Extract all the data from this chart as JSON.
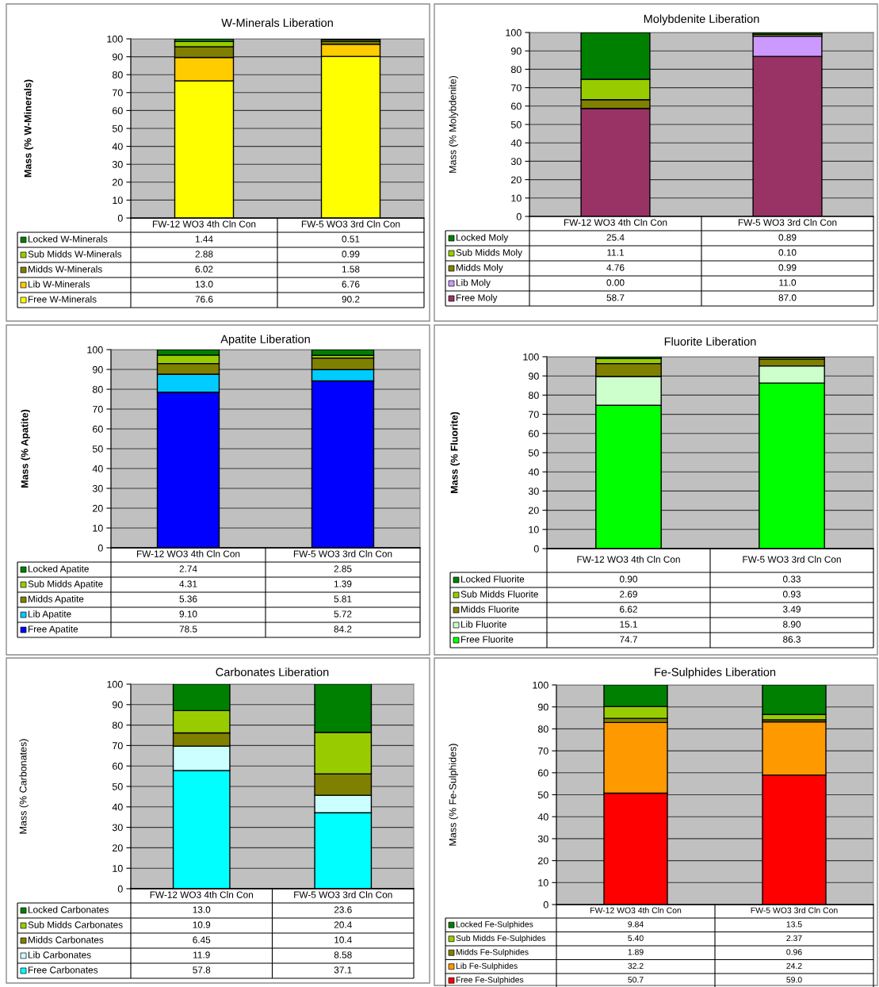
{
  "chart_data": [
    {
      "type": "bar",
      "stacked": true,
      "title": "W-Minerals Liberation",
      "ylabel": "Mass (% W-Minerals)",
      "categories": [
        "FW-12 WO3 4th Cln Con",
        "FW-5 WO3 3rd Cln Con"
      ],
      "ylim": [
        0,
        100
      ],
      "yticks": [
        0,
        10,
        20,
        30,
        40,
        50,
        60,
        70,
        80,
        90,
        100
      ],
      "grid": "y",
      "legend": "bottom",
      "series": [
        {
          "name": "Free W-Minerals",
          "color": "#ffff00",
          "values": [
            76.6,
            90.2
          ],
          "value_labels": [
            "76.6",
            "90.2"
          ]
        },
        {
          "name": "Lib W-Minerals",
          "color": "#ffcc00",
          "values": [
            13.0,
            6.76
          ],
          "value_labels": [
            "13.0",
            "6.76"
          ]
        },
        {
          "name": "Midds W-Minerals",
          "color": "#808000",
          "values": [
            6.02,
            1.58
          ],
          "value_labels": [
            "6.02",
            "1.58"
          ]
        },
        {
          "name": "Sub Midds W-Minerals",
          "color": "#99cc00",
          "values": [
            2.88,
            0.99
          ],
          "value_labels": [
            "2.88",
            "0.99"
          ]
        },
        {
          "name": "Locked W-Minerals",
          "color": "#008000",
          "values": [
            1.44,
            0.51
          ],
          "value_labels": [
            "1.44",
            "0.51"
          ]
        }
      ]
    },
    {
      "type": "bar",
      "stacked": true,
      "title": "Molybdenite Liberation",
      "ylabel": "Mass (% Molybdenite)",
      "categories": [
        "FW-12 WO3 4th Cln Con",
        "FW-5 WO3 3rd Cln Con"
      ],
      "ylim": [
        0,
        100
      ],
      "yticks": [
        0,
        10,
        20,
        30,
        40,
        50,
        60,
        70,
        80,
        90,
        100
      ],
      "grid": "y",
      "legend": "bottom",
      "series": [
        {
          "name": "Free Moly",
          "color": "#993366",
          "values": [
            58.7,
            87.0
          ],
          "value_labels": [
            "58.7",
            "87.0"
          ]
        },
        {
          "name": "Lib Moly",
          "color": "#cc99ff",
          "values": [
            0.0,
            11.0
          ],
          "value_labels": [
            "0.00",
            "11.0"
          ]
        },
        {
          "name": "Midds Moly",
          "color": "#808000",
          "values": [
            4.76,
            0.99
          ],
          "value_labels": [
            "4.76",
            "0.99"
          ]
        },
        {
          "name": "Sub Midds Moly",
          "color": "#99cc00",
          "values": [
            11.1,
            0.1
          ],
          "value_labels": [
            "11.1",
            "0.10"
          ]
        },
        {
          "name": "Locked Moly",
          "color": "#008000",
          "values": [
            25.4,
            0.89
          ],
          "value_labels": [
            "25.4",
            "0.89"
          ]
        }
      ]
    },
    {
      "type": "bar",
      "stacked": true,
      "title": "Apatite Liberation",
      "ylabel": "Mass (% Apatite)",
      "categories": [
        "FW-12 WO3 4th Cln Con",
        "FW-5 WO3 3rd Cln Con"
      ],
      "ylim": [
        0,
        100
      ],
      "yticks": [
        0,
        10,
        20,
        30,
        40,
        50,
        60,
        70,
        80,
        90,
        100
      ],
      "grid": "y",
      "legend": "bottom",
      "series": [
        {
          "name": "Free Apatite",
          "color": "#0000ff",
          "values": [
            78.5,
            84.2
          ],
          "value_labels": [
            "78.5",
            "84.2"
          ]
        },
        {
          "name": "Lib Apatite",
          "color": "#00ccff",
          "values": [
            9.1,
            5.72
          ],
          "value_labels": [
            "9.10",
            "5.72"
          ]
        },
        {
          "name": "Midds Apatite",
          "color": "#808000",
          "values": [
            5.36,
            5.81
          ],
          "value_labels": [
            "5.36",
            "5.81"
          ]
        },
        {
          "name": "Sub Midds Apatite",
          "color": "#99cc00",
          "values": [
            4.31,
            1.39
          ],
          "value_labels": [
            "4.31",
            "1.39"
          ]
        },
        {
          "name": "Locked Apatite",
          "color": "#008000",
          "values": [
            2.74,
            2.85
          ],
          "value_labels": [
            "2.74",
            "2.85"
          ]
        }
      ]
    },
    {
      "type": "bar",
      "stacked": true,
      "title": "Fluorite Liberation",
      "ylabel": "Mass (% Fluorite)",
      "categories": [
        "FW-12 WO3 4th Cln Con",
        "FW-5 WO3 3rd Cln Con"
      ],
      "ylim": [
        0,
        100
      ],
      "yticks": [
        0,
        10,
        20,
        30,
        40,
        50,
        60,
        70,
        80,
        90,
        100
      ],
      "grid": "y",
      "legend": "bottom",
      "series": [
        {
          "name": "Free Fluorite",
          "color": "#00ff00",
          "values": [
            74.7,
            86.3
          ],
          "value_labels": [
            "74.7",
            "86.3"
          ]
        },
        {
          "name": "Lib Fluorite",
          "color": "#ccffcc",
          "values": [
            15.1,
            8.9
          ],
          "value_labels": [
            "15.1",
            "8.90"
          ]
        },
        {
          "name": "Midds Fluorite",
          "color": "#808000",
          "values": [
            6.62,
            3.49
          ],
          "value_labels": [
            "6.62",
            "3.49"
          ]
        },
        {
          "name": "Sub Midds Fluorite",
          "color": "#99cc00",
          "values": [
            2.69,
            0.93
          ],
          "value_labels": [
            "2.69",
            "0.93"
          ]
        },
        {
          "name": "Locked Fluorite",
          "color": "#008000",
          "values": [
            0.9,
            0.33
          ],
          "value_labels": [
            "0.90",
            "0.33"
          ]
        }
      ]
    },
    {
      "type": "bar",
      "stacked": true,
      "title": "Carbonates Liberation",
      "ylabel": "Mass (% Carbonates)",
      "categories": [
        "FW-12 WO3 4th Cln Con",
        "FW-5 WO3 3rd Cln Con"
      ],
      "ylim": [
        0,
        100
      ],
      "yticks": [
        0,
        10,
        20,
        30,
        40,
        50,
        60,
        70,
        80,
        90,
        100
      ],
      "grid": "y",
      "legend": "bottom",
      "series": [
        {
          "name": "Free Carbonates",
          "color": "#00ffff",
          "values": [
            57.8,
            37.1
          ],
          "value_labels": [
            "57.8",
            "37.1"
          ]
        },
        {
          "name": "Lib Carbonates",
          "color": "#ccffff",
          "values": [
            11.9,
            8.58
          ],
          "value_labels": [
            "11.9",
            "8.58"
          ]
        },
        {
          "name": "Midds Carbonates",
          "color": "#808000",
          "values": [
            6.45,
            10.4
          ],
          "value_labels": [
            "6.45",
            "10.4"
          ]
        },
        {
          "name": "Sub Midds Carbonates",
          "color": "#99cc00",
          "values": [
            10.9,
            20.4
          ],
          "value_labels": [
            "10.9",
            "20.4"
          ]
        },
        {
          "name": "Locked Carbonates",
          "color": "#008000",
          "values": [
            13.0,
            23.6
          ],
          "value_labels": [
            "13.0",
            "23.6"
          ]
        }
      ]
    },
    {
      "type": "bar",
      "stacked": true,
      "title": "Fe-Sulphides Liberation",
      "ylabel": "Mass (% Fe-Sulphides)",
      "categories": [
        "FW-12 WO3 4th Cln Con",
        "FW-5 WO3 3rd Cln Con"
      ],
      "ylim": [
        0,
        100
      ],
      "yticks": [
        0,
        10,
        20,
        30,
        40,
        50,
        60,
        70,
        80,
        90,
        100
      ],
      "grid": "y",
      "legend": "bottom",
      "series": [
        {
          "name": "Free Fe-Sulphides",
          "color": "#ff0000",
          "values": [
            50.7,
            59.0
          ],
          "value_labels": [
            "50.7",
            "59.0"
          ]
        },
        {
          "name": "Lib Fe-Sulphides",
          "color": "#ff9900",
          "values": [
            32.2,
            24.2
          ],
          "value_labels": [
            "32.2",
            "24.2"
          ]
        },
        {
          "name": "Midds Fe-Sulphides",
          "color": "#808000",
          "values": [
            1.89,
            0.96
          ],
          "value_labels": [
            "1.89",
            "0.96"
          ]
        },
        {
          "name": "Sub Midds Fe-Sulphides",
          "color": "#99cc00",
          "values": [
            5.4,
            2.37
          ],
          "value_labels": [
            "5.40",
            "2.37"
          ]
        },
        {
          "name": "Locked Fe-Sulphides",
          "color": "#008000",
          "values": [
            9.84,
            13.5
          ],
          "value_labels": [
            "9.84",
            "13.5"
          ]
        }
      ]
    }
  ]
}
